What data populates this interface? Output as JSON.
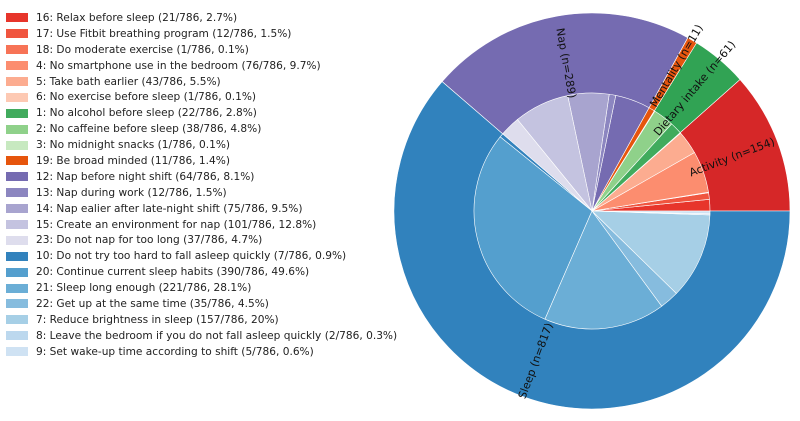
{
  "chart_data": {
    "type": "pie",
    "subtype": "nested-donut",
    "total": 786,
    "outer_ring": [
      {
        "name": "Activity",
        "label": "Activity (n=154)",
        "value": 154,
        "color": "#d62728"
      },
      {
        "name": "Dietary intake",
        "label": "Dietary intake (n=61)",
        "value": 61,
        "color": "#31a354"
      },
      {
        "name": "Mentality",
        "label": "Mentality (n=11)",
        "value": 11,
        "color": "#e6550d"
      },
      {
        "name": "Nap",
        "label": "Nap (n=289)",
        "value": 289,
        "color": "#756bb1"
      },
      {
        "name": "Sleep",
        "label": "Sleep (n=817)",
        "value": 817,
        "color": "#3182bd"
      }
    ],
    "inner_ring": [
      {
        "label": "16: Relax before sleep (21/786, 2.7%)",
        "value": 21,
        "color": "#e7352b"
      },
      {
        "label": "17: Use Fitbit breathing program (12/786, 1.5%)",
        "value": 12,
        "color": "#f0553f"
      },
      {
        "label": "18: Do moderate exercise (1/786, 0.1%)",
        "value": 1,
        "color": "#f77356"
      },
      {
        "label": "4: No smartphone use in the bedroom (76/786, 9.7%)",
        "value": 76,
        "color": "#fc8d6f"
      },
      {
        "label": "5: Take bath earlier (43/786, 5.5%)",
        "value": 43,
        "color": "#fcac90"
      },
      {
        "label": "6: No exercise before sleep (1/786, 0.1%)",
        "value": 1,
        "color": "#fdc9b3"
      },
      {
        "label": "1: No alcohol before sleep (22/786, 2.8%)",
        "value": 22,
        "color": "#41ab5d"
      },
      {
        "label": "2: No caffeine before sleep (38/786, 4.8%)",
        "value": 38,
        "color": "#8fd18a"
      },
      {
        "label": "3: No midnight snacks (1/786, 0.1%)",
        "value": 1,
        "color": "#c7e9c0"
      },
      {
        "label": "19: Be broad minded (11/786, 1.4%)",
        "value": 11,
        "color": "#e6550d"
      },
      {
        "label": "12: Nap before night shift (64/786, 8.1%)",
        "value": 64,
        "color": "#756bb1"
      },
      {
        "label": "13: Nap during work (12/786, 1.5%)",
        "value": 12,
        "color": "#8c86c0"
      },
      {
        "label": "14: Nap ealier after late-night shift (75/786, 9.5%)",
        "value": 75,
        "color": "#a8a4cf"
      },
      {
        "label": "15: Create an environment for nap (101/786, 12.8%)",
        "value": 101,
        "color": "#c4c3e0"
      },
      {
        "label": "23: Do not nap for too long (37/786, 4.7%)",
        "value": 37,
        "color": "#dedded"
      },
      {
        "label": "10: Do not try too hard to fall asleep quickly (7/786, 0.9%)",
        "value": 7,
        "color": "#3282bd"
      },
      {
        "label": "20: Continue current sleep habits (390/786, 49.6%)",
        "value": 390,
        "color": "#549fce"
      },
      {
        "label": "21: Sleep long enough (221/786, 28.1%)",
        "value": 221,
        "color": "#6baed6"
      },
      {
        "label": "22: Get up at the same time (35/786, 4.5%)",
        "value": 35,
        "color": "#86bcde"
      },
      {
        "label": "7: Reduce brightness in sleep (157/786, 20%)",
        "value": 157,
        "color": "#a6cfe6"
      },
      {
        "label": "8: Leave the bedroom if you do not fall asleep quickly (2/786, 0.3%)",
        "value": 2,
        "color": "#bcd8ee"
      },
      {
        "label": "9: Set wake-up time according to shift (5/786, 0.6%)",
        "value": 5,
        "color": "#cfe2f3"
      }
    ]
  }
}
